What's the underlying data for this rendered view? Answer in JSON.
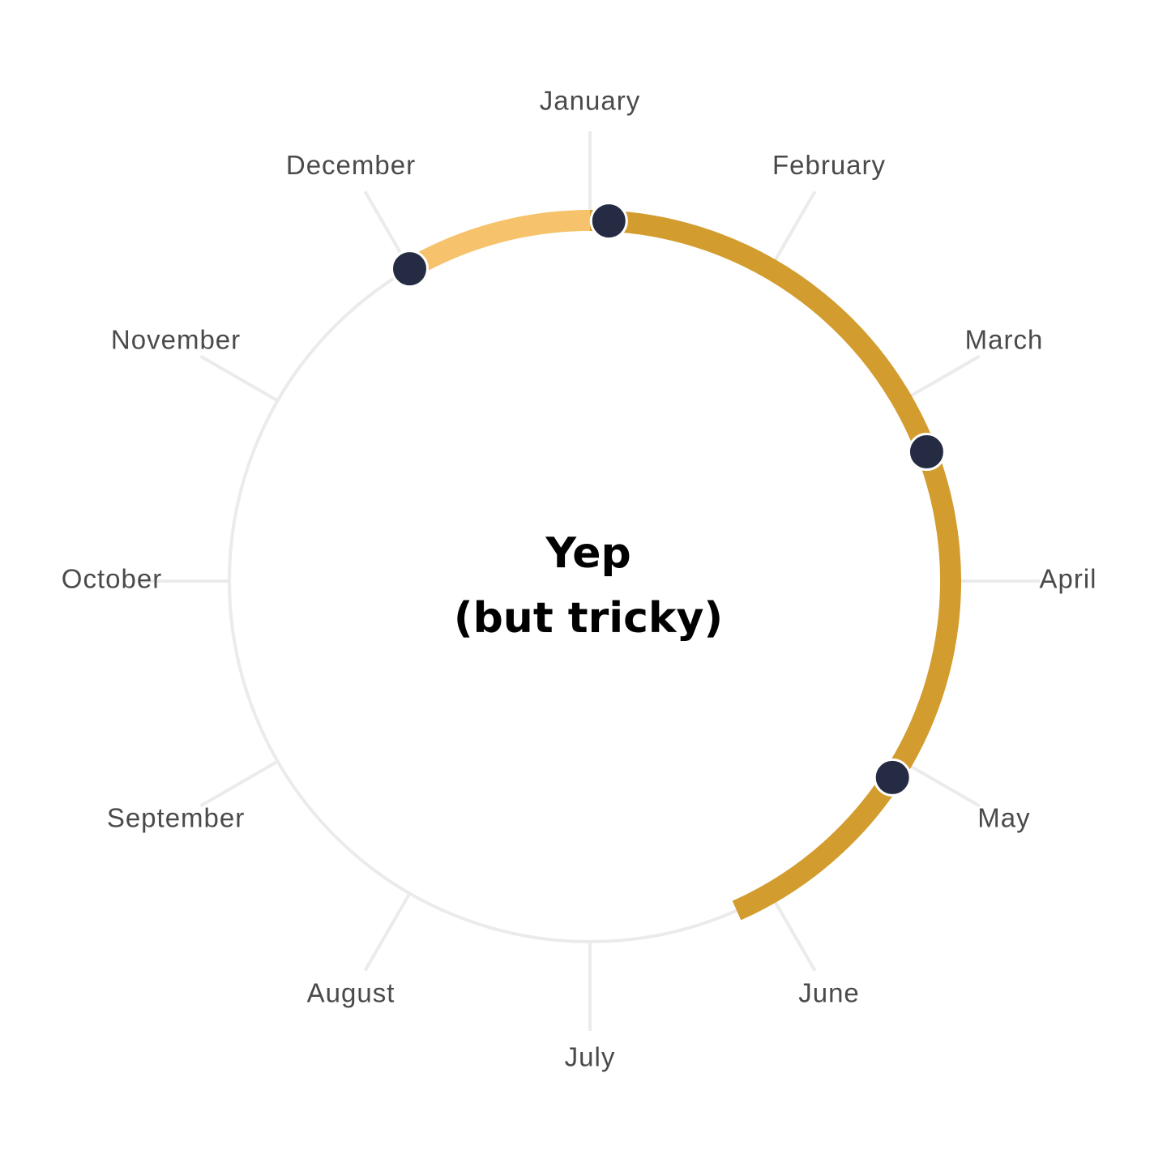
{
  "chart_data": {
    "type": "radial-timeline",
    "months": [
      "January",
      "February",
      "March",
      "April",
      "May",
      "June",
      "July",
      "August",
      "September",
      "October",
      "November",
      "December"
    ],
    "center_text": {
      "line1": "Yep",
      "line2": "(but tricky)"
    },
    "segments": [
      {
        "start_month": 11,
        "end_month": 12,
        "color": "#f6c26b"
      },
      {
        "start_month": 12,
        "end_month": 17.2,
        "color": "#d39c2f"
      }
    ],
    "points": [
      {
        "month": 11
      },
      {
        "month": 12.1
      },
      {
        "month": 14.3
      },
      {
        "month": 16.1
      }
    ],
    "colors": {
      "ring": "#ebebeb",
      "tick": "#ebebeb",
      "point_fill": "#252b42",
      "point_stroke": "#ffffff",
      "label": "#4a4a4a"
    }
  }
}
